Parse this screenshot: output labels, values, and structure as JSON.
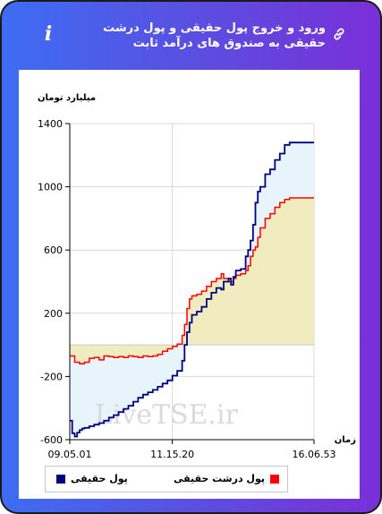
{
  "header": {
    "title": "ورود و خروج پول حقیقی و پول درشت حقیقی به صندوق های درآمد ثابت",
    "info_icon": "info-icon",
    "link_icon": "link-icon",
    "gradient_start": "#3d6df2",
    "gradient_end": "#7a2fd8"
  },
  "watermark": "LiveTSE.ir",
  "chart_data": {
    "type": "line",
    "ylabel": "میلیارد تومان",
    "xlabel": "زمان",
    "ylim": [
      -600,
      1400
    ],
    "yticks": [
      -600,
      -200,
      200,
      600,
      1000,
      1400
    ],
    "x_tick_labels": [
      "09.05.01",
      "11.15.20",
      "16.06.53"
    ],
    "x_range": [
      0,
      100
    ],
    "x_tick_positions": [
      0,
      42,
      100
    ],
    "grid": true,
    "legend_position": "bottom",
    "series": [
      {
        "name": "پول حقیقی",
        "color": "#000080",
        "fill": "#e8f4fb",
        "values": [
          [
            0,
            -480
          ],
          [
            1,
            -560
          ],
          [
            2,
            -580
          ],
          [
            3,
            -555
          ],
          [
            4,
            -540
          ],
          [
            5,
            -530
          ],
          [
            6,
            -525
          ],
          [
            8,
            -515
          ],
          [
            10,
            -505
          ],
          [
            12,
            -495
          ],
          [
            14,
            -480
          ],
          [
            16,
            -460
          ],
          [
            18,
            -445
          ],
          [
            20,
            -425
          ],
          [
            22,
            -405
          ],
          [
            24,
            -385
          ],
          [
            26,
            -360
          ],
          [
            28,
            -335
          ],
          [
            30,
            -315
          ],
          [
            32,
            -300
          ],
          [
            34,
            -285
          ],
          [
            36,
            -265
          ],
          [
            38,
            -245
          ],
          [
            40,
            -225
          ],
          [
            42,
            -195
          ],
          [
            44,
            -165
          ],
          [
            46,
            -100
          ],
          [
            47,
            0
          ],
          [
            48,
            80
          ],
          [
            49,
            140
          ],
          [
            50,
            190
          ],
          [
            52,
            210
          ],
          [
            54,
            240
          ],
          [
            56,
            290
          ],
          [
            58,
            330
          ],
          [
            60,
            360
          ],
          [
            62,
            350
          ],
          [
            63,
            400
          ],
          [
            65,
            420
          ],
          [
            66,
            380
          ],
          [
            67,
            430
          ],
          [
            68,
            470
          ],
          [
            70,
            480
          ],
          [
            72,
            560
          ],
          [
            73,
            600
          ],
          [
            74,
            660
          ],
          [
            75,
            760
          ],
          [
            76,
            900
          ],
          [
            77,
            970
          ],
          [
            78,
            1000
          ],
          [
            80,
            1080
          ],
          [
            82,
            1110
          ],
          [
            84,
            1170
          ],
          [
            86,
            1210
          ],
          [
            88,
            1265
          ],
          [
            90,
            1280
          ],
          [
            100,
            1280
          ]
        ]
      },
      {
        "name": "پول درشت حقیقی",
        "color": "#ff0000",
        "fill": "#f0ecc0",
        "values": [
          [
            0,
            -70
          ],
          [
            2,
            -110
          ],
          [
            4,
            -120
          ],
          [
            6,
            -110
          ],
          [
            8,
            -85
          ],
          [
            10,
            -80
          ],
          [
            12,
            -95
          ],
          [
            14,
            -70
          ],
          [
            16,
            -75
          ],
          [
            18,
            -80
          ],
          [
            20,
            -75
          ],
          [
            22,
            -80
          ],
          [
            24,
            -70
          ],
          [
            26,
            -75
          ],
          [
            28,
            -80
          ],
          [
            30,
            -70
          ],
          [
            32,
            -75
          ],
          [
            34,
            -70
          ],
          [
            36,
            -60
          ],
          [
            38,
            -40
          ],
          [
            40,
            -25
          ],
          [
            42,
            -10
          ],
          [
            44,
            5
          ],
          [
            46,
            60
          ],
          [
            47,
            130
          ],
          [
            48,
            230
          ],
          [
            49,
            290
          ],
          [
            50,
            310
          ],
          [
            52,
            320
          ],
          [
            54,
            340
          ],
          [
            56,
            370
          ],
          [
            58,
            400
          ],
          [
            60,
            420
          ],
          [
            62,
            450
          ],
          [
            63,
            420
          ],
          [
            65,
            400
          ],
          [
            67,
            420
          ],
          [
            68,
            440
          ],
          [
            70,
            450
          ],
          [
            72,
            470
          ],
          [
            73,
            500
          ],
          [
            74,
            560
          ],
          [
            75,
            600
          ],
          [
            76,
            620
          ],
          [
            77,
            680
          ],
          [
            78,
            740
          ],
          [
            80,
            800
          ],
          [
            82,
            830
          ],
          [
            84,
            870
          ],
          [
            86,
            900
          ],
          [
            88,
            920
          ],
          [
            90,
            930
          ],
          [
            100,
            930
          ]
        ]
      }
    ]
  }
}
